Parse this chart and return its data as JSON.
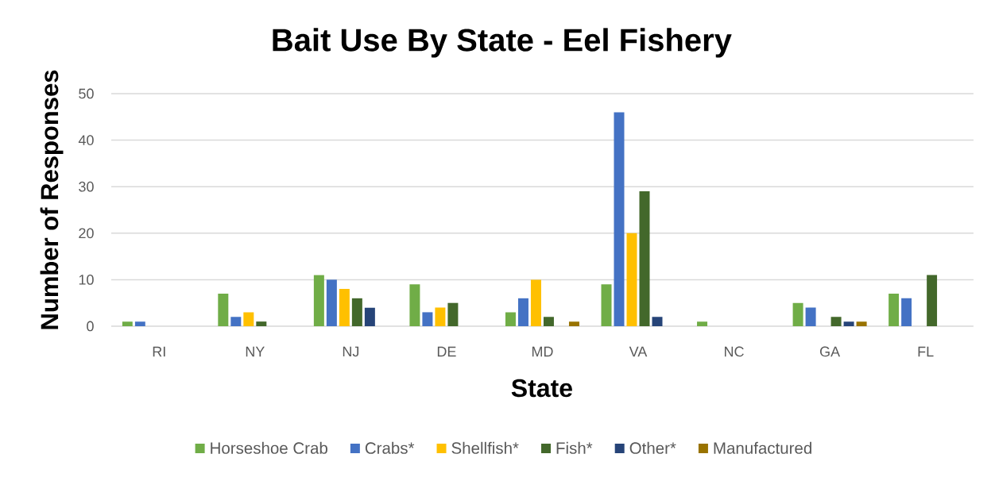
{
  "chart_data": {
    "type": "bar",
    "title": "Bait Use By State - Eel Fishery",
    "xlabel": "State",
    "ylabel": "Number of Responses",
    "categories": [
      "RI",
      "NY",
      "NJ",
      "DE",
      "MD",
      "VA",
      "NC",
      "GA",
      "FL"
    ],
    "series": [
      {
        "name": "Horseshoe Crab",
        "color": "#70ad47",
        "values": [
          1,
          7,
          11,
          9,
          3,
          9,
          1,
          5,
          7
        ]
      },
      {
        "name": "Crabs*",
        "color": "#4472c4",
        "values": [
          1,
          2,
          10,
          3,
          6,
          46,
          0,
          4,
          6
        ]
      },
      {
        "name": "Shellfish*",
        "color": "#ffc000",
        "values": [
          0,
          3,
          8,
          4,
          10,
          20,
          0,
          0,
          0
        ]
      },
      {
        "name": "Fish*",
        "color": "#43682b",
        "values": [
          0,
          1,
          6,
          5,
          2,
          29,
          0,
          2,
          11
        ]
      },
      {
        "name": "Other*",
        "color": "#264478",
        "values": [
          0,
          0,
          4,
          0,
          0,
          2,
          0,
          1,
          0
        ]
      },
      {
        "name": "Manufactured",
        "color": "#997300",
        "values": [
          0,
          0,
          0,
          0,
          1,
          0,
          0,
          1,
          0
        ]
      }
    ],
    "ylim": [
      0,
      50
    ],
    "yticks": [
      0,
      10,
      20,
      30,
      40,
      50
    ],
    "grid": "y",
    "legend": "bottom"
  }
}
